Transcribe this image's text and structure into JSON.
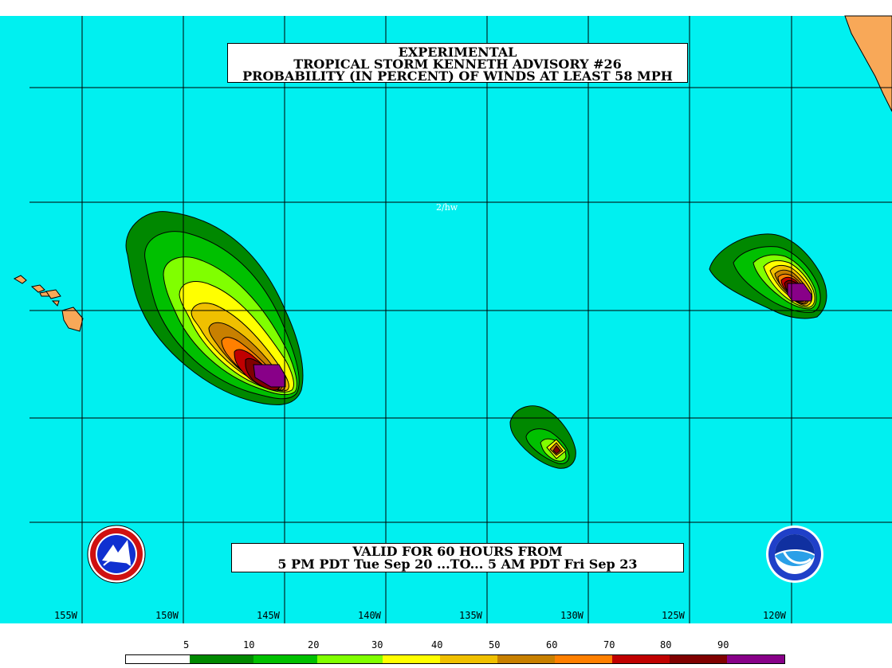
{
  "title": {
    "line1": "EXPERIMENTAL",
    "line2": "TROPICAL STORM KENNETH ADVISORY #26",
    "line3": "PROBABILITY (IN PERCENT) OF WINDS AT LEAST 58 MPH"
  },
  "valid": {
    "line1": "VALID FOR 60 HOURS FROM",
    "line2": "5 PM PDT Tue Sep 20 ...TO... 5 AM PDT Fri Sep 23"
  },
  "tag": "2/hw",
  "longitudes": [
    "155W",
    "150W",
    "145W",
    "140W",
    "135W",
    "130W",
    "125W",
    "120W"
  ],
  "legend": {
    "labels": [
      "5",
      "10",
      "20",
      "30",
      "40",
      "50",
      "60",
      "70",
      "80",
      "90"
    ],
    "colors": [
      "#ffffff",
      "#008800",
      "#00c000",
      "#80ff00",
      "#ffff00",
      "#f0c000",
      "#c88000",
      "#ff8000",
      "#c00000",
      "#800000",
      "#880088"
    ]
  },
  "colors": {
    "ocean": "#00f0f0",
    "land": "#f8a858",
    "grid": "#000000"
  },
  "logos": {
    "left": "nws-logo",
    "right": "noaa-logo",
    "right_text": "NOAA"
  }
}
